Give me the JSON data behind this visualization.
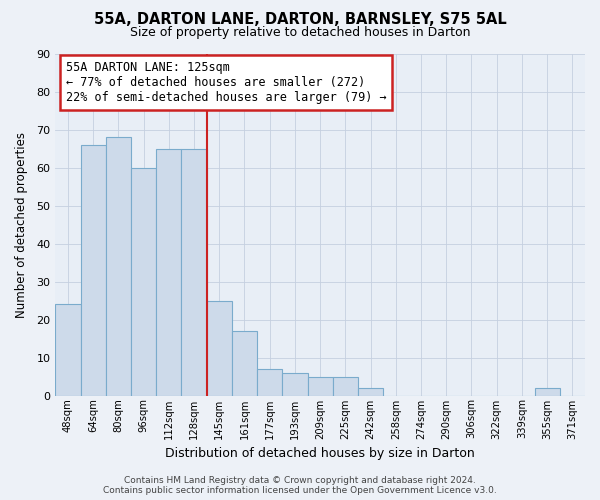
{
  "title": "55A, DARTON LANE, DARTON, BARNSLEY, S75 5AL",
  "subtitle": "Size of property relative to detached houses in Darton",
  "xlabel": "Distribution of detached houses by size in Darton",
  "ylabel": "Number of detached properties",
  "categories": [
    "48sqm",
    "64sqm",
    "80sqm",
    "96sqm",
    "112sqm",
    "128sqm",
    "145sqm",
    "161sqm",
    "177sqm",
    "193sqm",
    "209sqm",
    "225sqm",
    "242sqm",
    "258sqm",
    "274sqm",
    "290sqm",
    "306sqm",
    "322sqm",
    "339sqm",
    "355sqm",
    "371sqm"
  ],
  "values": [
    24,
    66,
    68,
    60,
    65,
    65,
    25,
    17,
    7,
    6,
    5,
    5,
    2,
    0,
    0,
    0,
    0,
    0,
    0,
    2,
    0
  ],
  "bar_color": "#cddaea",
  "bar_edge_color": "#7aabcc",
  "vline_color": "#cc2222",
  "ylim": [
    0,
    90
  ],
  "yticks": [
    0,
    10,
    20,
    30,
    40,
    50,
    60,
    70,
    80,
    90
  ],
  "annotation_box_text": "55A DARTON LANE: 125sqm\n← 77% of detached houses are smaller (272)\n22% of semi-detached houses are larger (79) →",
  "footer_text": "Contains HM Land Registry data © Crown copyright and database right 2024.\nContains public sector information licensed under the Open Government Licence v3.0.",
  "background_color": "#edf1f7",
  "plot_background": "#e8eef6",
  "grid_color": "#c5cfe0"
}
